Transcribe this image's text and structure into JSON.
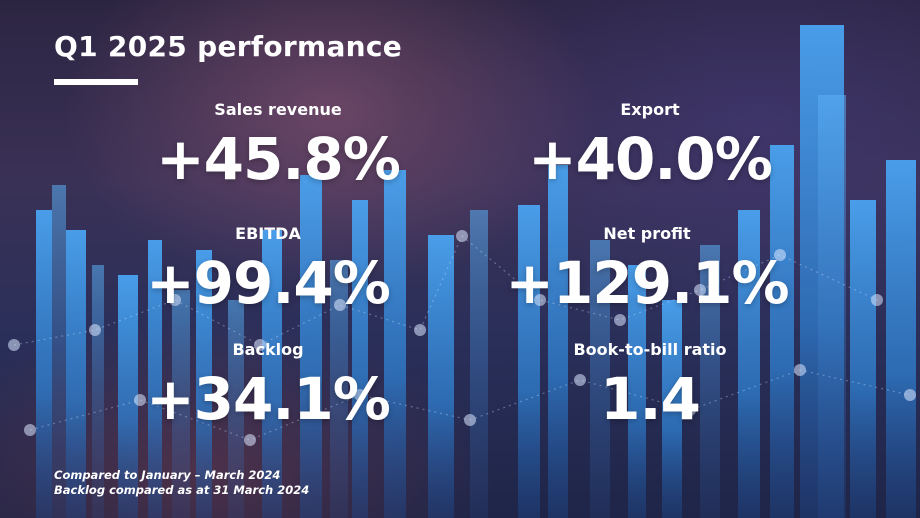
{
  "slide": {
    "title": "Q1 2025 performance",
    "metrics": [
      {
        "label": "Sales revenue",
        "value": "+45.8%"
      },
      {
        "label": "Export",
        "value": "+40.0%"
      },
      {
        "label": "EBITDA",
        "value": "+99.4%"
      },
      {
        "label": "Net profit",
        "value": "+129.1%"
      },
      {
        "label": "Backlog",
        "value": "+34.1%"
      },
      {
        "label": "Book-to-bill ratio",
        "value": "1.4"
      }
    ],
    "footnotes": [
      "Compared to January – March 2024",
      "Backlog compared as at 31 March 2024"
    ]
  },
  "colors": {
    "text": "#ffffff",
    "bar_blue": "#3a8ad8",
    "background_dark": "#2a2f5a"
  },
  "icons": {
    "background": "bar-chart-background-graphic"
  }
}
